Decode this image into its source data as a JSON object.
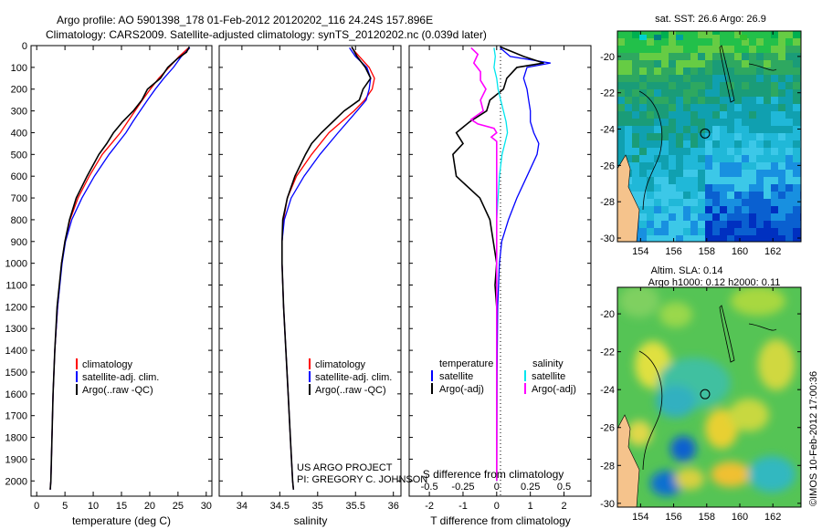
{
  "header": {
    "title_line1": "Argo profile: AO 5901398_178 01-Feb-2012 20120202_116 24.24S 157.896E",
    "title_line2": "Climatology: CARS2009. Satellite-adjusted climatology: synTS_20120202.nc (0.039d later)"
  },
  "credits": {
    "project": "US ARGO PROJECT",
    "pi": "PI: GREGORY C. JOHNSON",
    "imos": "©IMOS 10-Feb-2012 17:00:36"
  },
  "colors": {
    "climatology": "#ff0000",
    "satellite": "#0000ff",
    "argo": "#000000",
    "sat_diff_s": "#00e5ee",
    "argo_diff_s": "#ff00ff"
  },
  "chart_data": [
    {
      "type": "line",
      "panel": "temperature",
      "xlabel": "temperature (deg C)",
      "xlim": [
        -1,
        31
      ],
      "ylim": [
        2070,
        0
      ],
      "xticks": [
        "0",
        "5",
        "10",
        "15",
        "20",
        "25",
        "30"
      ],
      "yticks": [
        "0",
        "100",
        "200",
        "300",
        "400",
        "500",
        "600",
        "700",
        "800",
        "900",
        "1000",
        "1100",
        "1200",
        "1300",
        "1400",
        "1500",
        "1600",
        "1700",
        "1800",
        "1900",
        "2000"
      ],
      "legend": [
        "climatology",
        "satellite-adj. clim.",
        "Argo(..raw -QC)"
      ],
      "series": [
        {
          "name": "climatology",
          "depth": [
            10,
            50,
            100,
            150,
            200,
            250,
            300,
            350,
            400,
            450,
            500,
            600,
            700,
            800,
            900,
            1000,
            1200,
            1400,
            1600,
            1800,
            2000,
            2040
          ],
          "values": [
            26.9,
            25.2,
            23.4,
            21.6,
            20.1,
            18.7,
            17.4,
            16.1,
            14.8,
            13.2,
            11.6,
            9.3,
            7.3,
            5.9,
            5.0,
            4.4,
            3.7,
            3.2,
            2.9,
            2.7,
            2.5,
            2.4
          ]
        },
        {
          "name": "satellite-adj. clim.",
          "depth": [
            10,
            50,
            100,
            150,
            200,
            250,
            300,
            350,
            400,
            450,
            500,
            600,
            700,
            800,
            900,
            1000,
            1200,
            1400,
            1600,
            1800,
            2000,
            2040
          ],
          "values": [
            27.1,
            25.6,
            24.2,
            22.5,
            21.0,
            19.6,
            18.3,
            17.0,
            15.8,
            14.3,
            12.8,
            10.2,
            8.0,
            6.2,
            5.1,
            4.5,
            3.7,
            3.2,
            2.9,
            2.7,
            2.5,
            2.4
          ]
        },
        {
          "name": "Argo(..raw -QC)",
          "depth": [
            5,
            30,
            60,
            100,
            150,
            200,
            250,
            300,
            350,
            400,
            450,
            500,
            600,
            700,
            800,
            900,
            1000,
            1200,
            1400,
            1600,
            1800,
            2000,
            2040
          ],
          "values": [
            27.0,
            26.5,
            24.9,
            23.2,
            21.9,
            19.6,
            18.6,
            17.1,
            15.2,
            13.6,
            12.4,
            11.0,
            8.9,
            7.0,
            5.8,
            5.0,
            4.4,
            3.6,
            3.2,
            2.9,
            2.7,
            2.5,
            2.4
          ]
        }
      ]
    },
    {
      "type": "line",
      "panel": "salinity",
      "xlabel": "salinity",
      "xlim": [
        33.7,
        36.1
      ],
      "ylim": [
        2070,
        0
      ],
      "xticks": [
        "34",
        "34.5",
        "35",
        "35.5",
        "36"
      ],
      "legend": [
        "climatology",
        "satellite-adj. clim.",
        "Argo(..raw -QC)"
      ],
      "series": [
        {
          "name": "climatology",
          "depth": [
            10,
            50,
            100,
            150,
            200,
            250,
            300,
            400,
            500,
            600,
            700,
            800,
            900,
            1000,
            1200,
            1400,
            1600,
            1800,
            2000,
            2040
          ],
          "values": [
            35.45,
            35.55,
            35.68,
            35.75,
            35.72,
            35.62,
            35.48,
            35.15,
            34.92,
            34.72,
            34.6,
            34.55,
            34.53,
            34.53,
            34.55,
            34.58,
            34.61,
            34.64,
            34.67,
            34.68
          ]
        },
        {
          "name": "satellite-adj. clim.",
          "depth": [
            10,
            50,
            100,
            150,
            200,
            250,
            300,
            400,
            500,
            600,
            700,
            800,
            900,
            1000,
            1200,
            1400,
            1600,
            1800,
            2000,
            2040
          ],
          "values": [
            35.42,
            35.5,
            35.65,
            35.7,
            35.68,
            35.64,
            35.52,
            35.27,
            35.03,
            34.82,
            34.65,
            34.56,
            34.53,
            34.53,
            34.55,
            34.58,
            34.61,
            34.64,
            34.67,
            34.68
          ]
        },
        {
          "name": "Argo(..raw -QC)",
          "depth": [
            5,
            50,
            100,
            150,
            200,
            250,
            300,
            350,
            400,
            450,
            500,
            600,
            700,
            800,
            900,
            1000,
            1200,
            1400,
            1600,
            1800,
            2000,
            2040
          ],
          "values": [
            35.45,
            35.52,
            35.63,
            35.7,
            35.6,
            35.55,
            35.35,
            35.2,
            35.05,
            34.92,
            34.84,
            34.7,
            34.6,
            34.54,
            34.53,
            34.53,
            34.55,
            34.58,
            34.61,
            34.64,
            34.67,
            34.68
          ]
        }
      ]
    },
    {
      "type": "line",
      "panel": "differences",
      "xlabel": "T difference from climatology",
      "xlabel_top": "S difference from climatology",
      "xlim": [
        -2.6,
        2.8
      ],
      "ylim": [
        2070,
        0
      ],
      "xticks": [
        "-2",
        "-1",
        "0",
        "1",
        "2"
      ],
      "xticks_s": [
        "-0.5",
        "-0.25",
        "0",
        "0.25",
        "0.5"
      ],
      "legend": {
        "temperature_header": "temperature",
        "salinity_header": "salinity",
        "satellite": "satellite",
        "argo": "Argo(-adj)"
      },
      "series": [
        {
          "name": "temperature satellite",
          "depth": [
            10,
            50,
            80,
            100,
            150,
            200,
            250,
            300,
            350,
            400,
            450,
            500,
            600,
            700,
            800,
            900,
            1000,
            1200,
            1500,
            2000
          ],
          "values": [
            0.1,
            0.4,
            1.6,
            0.9,
            0.8,
            0.9,
            0.95,
            1.0,
            1.0,
            1.1,
            1.25,
            1.2,
            0.9,
            0.6,
            0.35,
            0.15,
            0.08,
            0.03,
            0.01,
            0.0
          ]
        },
        {
          "name": "temperature Argo(-adj)",
          "depth": [
            5,
            50,
            80,
            100,
            150,
            200,
            250,
            300,
            350,
            400,
            450,
            500,
            600,
            700,
            800,
            900,
            1000,
            1100,
            1200,
            1500,
            2000
          ],
          "values": [
            0.1,
            0.8,
            1.4,
            0.6,
            0.3,
            0.2,
            -0.2,
            -0.3,
            -0.8,
            -1.2,
            -1.0,
            -1.3,
            -1.2,
            -0.5,
            -0.2,
            -0.1,
            0.0,
            -0.05,
            0.0,
            0.0,
            0.0
          ]
        },
        {
          "name": "salinity satellite",
          "depth": [
            10,
            50,
            100,
            150,
            200,
            250,
            300,
            350,
            400,
            450,
            500,
            600,
            700,
            800,
            1000,
            1200,
            1500,
            2000
          ],
          "values": [
            -0.02,
            -0.01,
            -0.02,
            0.0,
            0.01,
            0.03,
            0.05,
            0.07,
            0.08,
            0.06,
            0.04,
            0.02,
            0.01,
            0.0,
            0.0,
            0.0,
            0.0,
            0.0
          ]
        },
        {
          "name": "salinity Argo(-adj)",
          "depth": [
            10,
            40,
            80,
            120,
            160,
            200,
            250,
            300,
            340,
            360,
            380,
            400,
            420,
            440,
            500,
            600,
            800,
            1000,
            1500,
            2000
          ],
          "values": [
            -0.19,
            -0.14,
            -0.17,
            -0.12,
            -0.12,
            -0.08,
            -0.12,
            -0.1,
            -0.19,
            -0.14,
            -0.02,
            0.0,
            -0.04,
            0.0,
            0.0,
            0.0,
            0.0,
            0.0,
            0.0,
            0.0
          ]
        }
      ]
    },
    {
      "type": "heatmap",
      "panel": "sat_sst",
      "title": "sat. SST: 26.6  Argo: 26.9",
      "xlim": [
        152.6,
        163.7
      ],
      "ylim": [
        -30.2,
        -18.6
      ],
      "xticks": [
        "154",
        "156",
        "158",
        "160",
        "162"
      ],
      "yticks": [
        "-20",
        "-22",
        "-24",
        "-26",
        "-28",
        "-30"
      ],
      "marker": {
        "lon": 157.9,
        "lat": -24.24
      }
    },
    {
      "type": "heatmap",
      "panel": "altim_sla",
      "title": "Altim. SLA: 0.14",
      "subtitle": "Argo h1000: 0.12  h2000: 0.11",
      "xlim": [
        152.6,
        163.7
      ],
      "ylim": [
        -30.2,
        -18.6
      ],
      "xticks": [
        "154",
        "156",
        "158",
        "160",
        "162"
      ],
      "yticks": [
        "-20",
        "-22",
        "-24",
        "-26",
        "-28",
        "-30"
      ],
      "marker": {
        "lon": 157.9,
        "lat": -24.24
      }
    }
  ]
}
